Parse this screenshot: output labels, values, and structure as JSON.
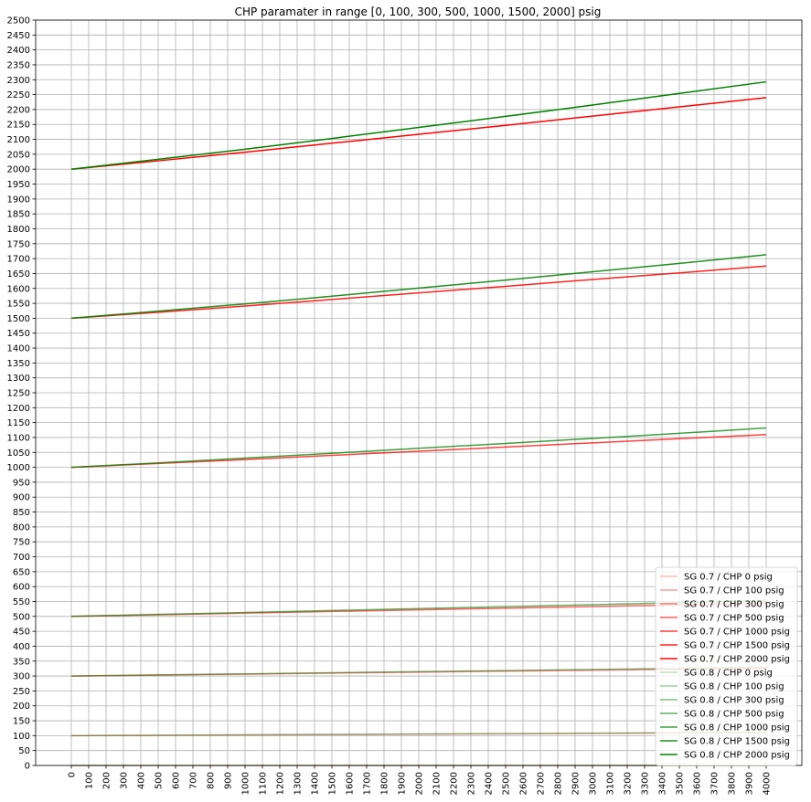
{
  "chart_data": {
    "type": "line",
    "title": "CHP paramater in range [0, 100, 300, 500, 1000, 1500, 2000] psig",
    "xlabel": "",
    "ylabel": "",
    "xlim": [
      0,
      4000
    ],
    "ylim": [
      0,
      2500
    ],
    "x_ticks": [
      0,
      100,
      200,
      300,
      400,
      500,
      600,
      700,
      800,
      900,
      1000,
      1100,
      1200,
      1300,
      1400,
      1500,
      1600,
      1700,
      1800,
      1900,
      2000,
      2100,
      2200,
      2300,
      2400,
      2500,
      2600,
      2700,
      2800,
      2900,
      3000,
      3100,
      3200,
      3300,
      3400,
      3500,
      3600,
      3700,
      3800,
      3900,
      4000
    ],
    "y_ticks": [
      0,
      50,
      100,
      150,
      200,
      250,
      300,
      350,
      400,
      450,
      500,
      550,
      600,
      650,
      700,
      750,
      800,
      850,
      900,
      950,
      1000,
      1050,
      1100,
      1150,
      1200,
      1250,
      1300,
      1350,
      1400,
      1450,
      1500,
      1550,
      1600,
      1650,
      1700,
      1750,
      1800,
      1850,
      1900,
      1950,
      2000,
      2050,
      2100,
      2150,
      2200,
      2250,
      2300,
      2350,
      2400,
      2450,
      2500
    ],
    "grid": true,
    "legend_position": "lower-right",
    "x": [
      0,
      500,
      1000,
      1500,
      2000,
      2500,
      3000,
      3500,
      4000
    ],
    "series": [
      {
        "name": "SG 0.7  / CHP 0 psig",
        "color": "#ff0000",
        "alpha": 0.25,
        "values": [
          0,
          0,
          0,
          0,
          0,
          0,
          0,
          0,
          0
        ]
      },
      {
        "name": "SG 0.7  / CHP 100 psig",
        "color": "#ff0000",
        "alpha": 0.38,
        "values": [
          100,
          101.2,
          102.5,
          103.7,
          105,
          106.2,
          107.5,
          108.7,
          110
        ]
      },
      {
        "name": "SG 0.7  / CHP 300 psig",
        "color": "#ff0000",
        "alpha": 0.5,
        "values": [
          300,
          303.2,
          306.5,
          309.8,
          313,
          316.3,
          319.5,
          322.8,
          326
        ]
      },
      {
        "name": "SG 0.7  / CHP 500 psig",
        "color": "#ff0000",
        "alpha": 0.62,
        "values": [
          500,
          505.5,
          511,
          516.5,
          522,
          527.5,
          533,
          538.5,
          544
        ]
      },
      {
        "name": "SG 0.7  / CHP 1000 psig",
        "color": "#ff0000",
        "alpha": 0.75,
        "values": [
          1000,
          1013,
          1026,
          1040,
          1054,
          1068,
          1082,
          1096,
          1110
        ]
      },
      {
        "name": "SG 0.7  / CHP 1500 psig",
        "color": "#ff0000",
        "alpha": 0.87,
        "values": [
          1500,
          1520,
          1541,
          1563,
          1585,
          1607,
          1630,
          1652,
          1675
        ]
      },
      {
        "name": "SG 0.7  / CHP 2000 psig",
        "color": "#ff0000",
        "alpha": 1.0,
        "values": [
          2000,
          2028,
          2057,
          2087,
          2117,
          2147,
          2178,
          2209,
          2240
        ]
      },
      {
        "name": "SG 0.8  / CHP 0 psig",
        "color": "#008000",
        "alpha": 0.25,
        "values": [
          0,
          0,
          0,
          0,
          0,
          0,
          0,
          0,
          0
        ]
      },
      {
        "name": "SG 0.8  / CHP 100 psig",
        "color": "#008000",
        "alpha": 0.38,
        "values": [
          100,
          101.4,
          102.8,
          104.2,
          105.6,
          107,
          108.4,
          109.8,
          111
        ]
      },
      {
        "name": "SG 0.8  / CHP 300 psig",
        "color": "#008000",
        "alpha": 0.5,
        "values": [
          300,
          303.6,
          307.2,
          310.9,
          314.6,
          318.3,
          322,
          325.7,
          329.5
        ]
      },
      {
        "name": "SG 0.8  / CHP 500 psig",
        "color": "#008000",
        "alpha": 0.62,
        "values": [
          500,
          506.5,
          513,
          519.6,
          526.2,
          532.8,
          539.4,
          546,
          552.5
        ]
      },
      {
        "name": "SG 0.8  / CHP 1000 psig",
        "color": "#008000",
        "alpha": 0.75,
        "values": [
          1000,
          1015,
          1031,
          1047,
          1064,
          1080,
          1097,
          1114,
          1132
        ]
      },
      {
        "name": "SG 0.8  / CHP 1500 psig",
        "color": "#008000",
        "alpha": 0.87,
        "values": [
          1500,
          1524,
          1548,
          1574,
          1601,
          1628,
          1656,
          1684,
          1713
        ]
      },
      {
        "name": "SG 0.8  / CHP 2000 psig",
        "color": "#008000",
        "alpha": 1.0,
        "values": [
          2000,
          2033,
          2067,
          2103,
          2140,
          2177,
          2215,
          2254,
          2293
        ]
      }
    ]
  }
}
